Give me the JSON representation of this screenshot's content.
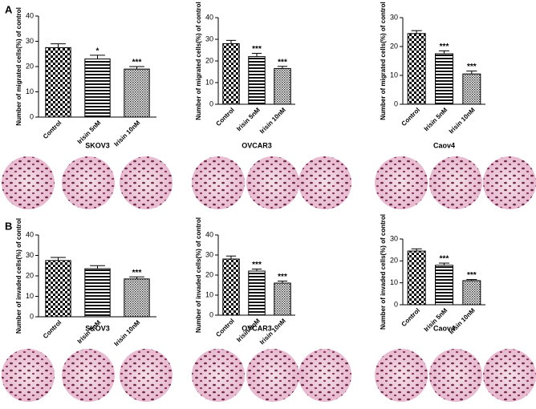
{
  "panels": [
    "A",
    "B"
  ],
  "chart_data": [
    {
      "type": "bar",
      "title": "SKOV3",
      "y_label": "Number of migrated cells(%) of control",
      "categories": [
        "Control",
        "Irisin 5nM",
        "Irisin 10nM"
      ],
      "values": [
        27.5,
        23,
        19
      ],
      "errors": [
        1.5,
        1.5,
        1
      ],
      "annotations": [
        null,
        "*",
        "***"
      ],
      "ylim": [
        0,
        40
      ],
      "yticks": [
        0,
        10,
        20,
        30,
        40
      ]
    },
    {
      "type": "bar",
      "title": "OVCAR3",
      "y_label": "Number of migrated cells(%) of control",
      "categories": [
        "Control",
        "Irisin 5nM",
        "Irisin 10nM"
      ],
      "values": [
        28,
        22,
        16.5
      ],
      "errors": [
        1.5,
        1.5,
        1
      ],
      "annotations": [
        null,
        "***",
        "***"
      ],
      "ylim": [
        0,
        40
      ],
      "yticks": [
        0,
        10,
        20,
        30,
        40
      ]
    },
    {
      "type": "bar",
      "title": "Caov4",
      "y_label": "Number of migrated cells(%) of control",
      "categories": [
        "Control",
        "Irisin 5nM",
        "Irisin 10nM"
      ],
      "values": [
        24.5,
        17.5,
        10.5
      ],
      "errors": [
        1,
        1,
        1
      ],
      "annotations": [
        null,
        "***",
        "***"
      ],
      "ylim": [
        0,
        30
      ],
      "yticks": [
        0,
        10,
        20,
        30
      ]
    },
    {
      "type": "bar",
      "title": "SKOV3",
      "y_label": "Number of invaded cells(%) of control",
      "categories": [
        "Control",
        "Irisin 5nM",
        "Irisin 10nM"
      ],
      "values": [
        27.5,
        23.5,
        18.5
      ],
      "errors": [
        1.5,
        1.5,
        1
      ],
      "annotations": [
        null,
        null,
        "***"
      ],
      "ylim": [
        0,
        40
      ],
      "yticks": [
        0,
        10,
        20,
        30,
        40
      ]
    },
    {
      "type": "bar",
      "title": "OVCAR3",
      "y_label": "Number of invaded cells(%) of control",
      "categories": [
        "Control",
        "Irisin 5nM",
        "Irisin 10nM"
      ],
      "values": [
        28,
        22,
        16
      ],
      "errors": [
        1.5,
        1,
        1
      ],
      "annotations": [
        null,
        "***",
        "***"
      ],
      "ylim": [
        0,
        40
      ],
      "yticks": [
        0,
        10,
        20,
        30,
        40
      ]
    },
    {
      "type": "bar",
      "title": "Caov4",
      "y_label": "Number of invaded cells(%) of control",
      "categories": [
        "Control",
        "Irisin 5nM",
        "Irisin 10nM"
      ],
      "values": [
        24.5,
        18,
        11
      ],
      "errors": [
        1,
        1,
        0.5
      ],
      "annotations": [
        null,
        "***",
        "***"
      ],
      "ylim": [
        0,
        30
      ],
      "yticks": [
        0,
        10,
        20,
        30
      ]
    }
  ]
}
